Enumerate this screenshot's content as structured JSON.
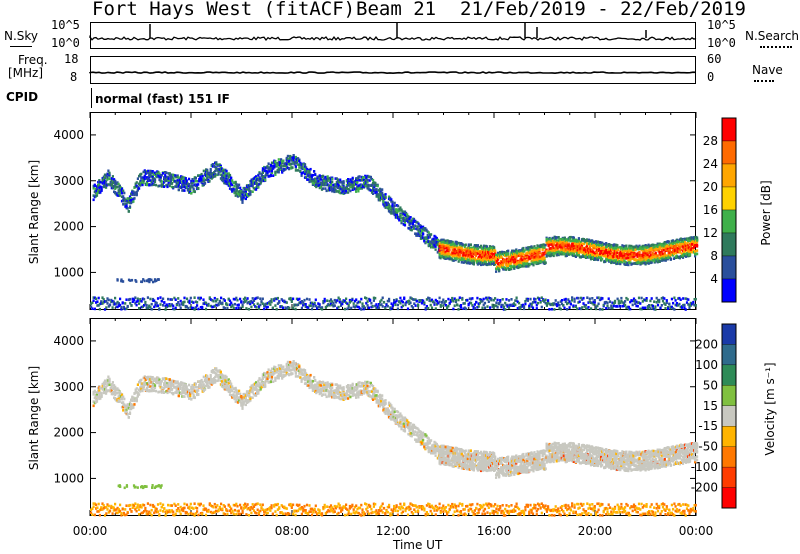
{
  "header": {
    "radar": "Fort Hays West (fitACF)",
    "beam": "Beam 21",
    "dates": "21/Feb/2019 - 22/Feb/2019"
  },
  "info_panels": {
    "nsky_label": "N.Sky",
    "nsearch_label": "N.Search",
    "noise_ticks": [
      "10^5",
      "10^0"
    ],
    "freq_label": "Freq.",
    "freq_unit": "[MHz]",
    "freq_ticks": [
      "18",
      "8"
    ],
    "nave_label": "Nave",
    "nave_ticks": [
      "60",
      "0"
    ],
    "cpid_label": "CPID",
    "cpid_value": "normal (fast) 151 IF"
  },
  "chart_data": [
    {
      "type": "heatmap",
      "panel": "power",
      "ylabel": "Slant Range [km]",
      "yticks": [
        "4000",
        "3000",
        "2000",
        "1000"
      ],
      "ylim": [
        180,
        4500
      ],
      "xlim": [
        "00:00",
        "24:00"
      ],
      "colorbar": {
        "label": "Power [dB]",
        "ticks": [
          "28",
          "24",
          "20",
          "16",
          "12",
          "8",
          "4"
        ],
        "colors": [
          "#ff0000",
          "#ff6a00",
          "#ffa600",
          "#ffd200",
          "#3fb04a",
          "#2f7a5c",
          "#2a4f9c",
          "#0000ff"
        ]
      }
    },
    {
      "type": "heatmap",
      "panel": "velocity",
      "ylabel": "Slant Range [km]",
      "yticks": [
        "4000",
        "3000",
        "2000",
        "1000"
      ],
      "ylim": [
        180,
        4500
      ],
      "xlim": [
        "00:00",
        "24:00"
      ],
      "colorbar": {
        "label": "Velocity [m s⁻¹]",
        "ticks": [
          "200",
          "100",
          "50",
          "15",
          "-15",
          "-50",
          "-100",
          "-200"
        ],
        "colors": [
          "#1a3aa8",
          "#2f6b8c",
          "#2e8b57",
          "#80c040",
          "#c8c8c0",
          "#ffb400",
          "#ff7800",
          "#ff3c00",
          "#ff0000"
        ]
      }
    }
  ],
  "xaxis": {
    "ticks": [
      "00:00",
      "04:00",
      "08:00",
      "12:00",
      "16:00",
      "20:00",
      "00:00"
    ],
    "label": "Time UT"
  }
}
